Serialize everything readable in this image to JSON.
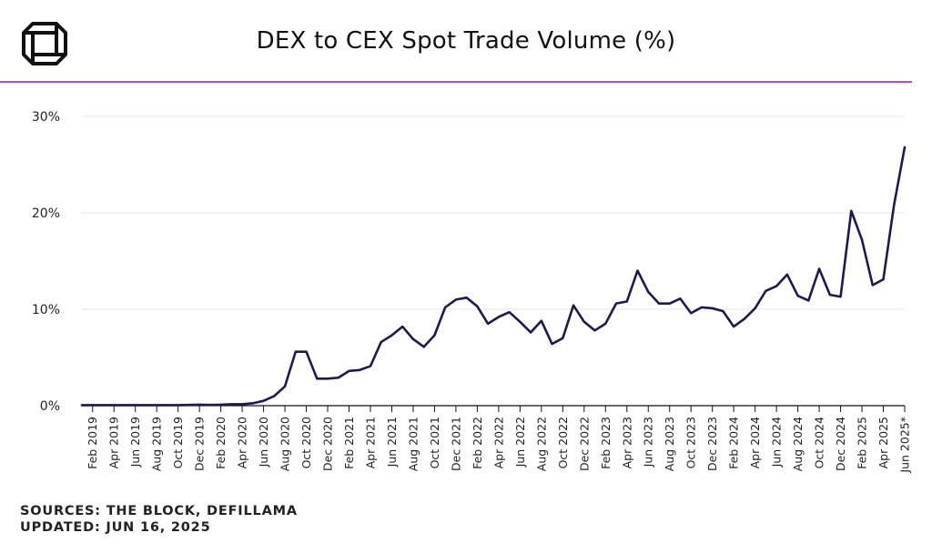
{
  "header": {
    "title": "DEX to CEX Spot Trade Volume (%)"
  },
  "footer": {
    "sources": "SOURCES: THE BLOCK, DEFILLAMA",
    "updated": "UPDATED: JUN 16, 2025"
  },
  "colors": {
    "line": "#1f1a4d",
    "accent_rule": "#b54ad8",
    "grid": "#e6e6e6",
    "axis": "#111111"
  },
  "chart_data": {
    "type": "line",
    "title": "DEX to CEX Spot Trade Volume (%)",
    "xlabel": "",
    "ylabel": "",
    "ylim": [
      0,
      30
    ],
    "yticks": [
      0,
      10,
      20,
      30
    ],
    "ytick_labels": [
      "0%",
      "10%",
      "20%",
      "30%"
    ],
    "grid": true,
    "legend": "none",
    "x_tick_labels": [
      "Feb 2019",
      "Apr 2019",
      "Jun 2019",
      "Aug 2019",
      "Oct 2019",
      "Dec 2019",
      "Feb 2020",
      "Apr 2020",
      "Jun 2020",
      "Aug 2020",
      "Oct 2020",
      "Dec 2020",
      "Feb 2021",
      "Apr 2021",
      "Jun 2021",
      "Aug 2021",
      "Oct 2021",
      "Dec 2021",
      "Feb 2022",
      "Apr 2022",
      "Jun 2022",
      "Aug 2022",
      "Oct 2022",
      "Dec 2022",
      "Feb 2023",
      "Apr 2023",
      "Jun 2023",
      "Aug 2023",
      "Oct 2023",
      "Dec 2023",
      "Feb 2024",
      "Apr 2024",
      "Jun 2024",
      "Aug 2024",
      "Oct 2024",
      "Dec 2024",
      "Feb 2025",
      "Apr 2025",
      "Jun 2025*"
    ],
    "x": [
      "Jan 2019",
      "Feb 2019",
      "Mar 2019",
      "Apr 2019",
      "May 2019",
      "Jun 2019",
      "Jul 2019",
      "Aug 2019",
      "Sep 2019",
      "Oct 2019",
      "Nov 2019",
      "Dec 2019",
      "Jan 2020",
      "Feb 2020",
      "Mar 2020",
      "Apr 2020",
      "May 2020",
      "Jun 2020",
      "Jul 2020",
      "Aug 2020",
      "Sep 2020",
      "Oct 2020",
      "Nov 2020",
      "Dec 2020",
      "Jan 2021",
      "Feb 2021",
      "Mar 2021",
      "Apr 2021",
      "May 2021",
      "Jun 2021",
      "Jul 2021",
      "Aug 2021",
      "Sep 2021",
      "Oct 2021",
      "Nov 2021",
      "Dec 2021",
      "Jan 2022",
      "Feb 2022",
      "Mar 2022",
      "Apr 2022",
      "May 2022",
      "Jun 2022",
      "Jul 2022",
      "Aug 2022",
      "Sep 2022",
      "Oct 2022",
      "Nov 2022",
      "Dec 2022",
      "Jan 2023",
      "Feb 2023",
      "Mar 2023",
      "Apr 2023",
      "May 2023",
      "Jun 2023",
      "Jul 2023",
      "Aug 2023",
      "Sep 2023",
      "Oct 2023",
      "Nov 2023",
      "Dec 2023",
      "Jan 2024",
      "Feb 2024",
      "Mar 2024",
      "Apr 2024",
      "May 2024",
      "Jun 2024",
      "Jul 2024",
      "Aug 2024",
      "Sep 2024",
      "Oct 2024",
      "Nov 2024",
      "Dec 2024",
      "Jan 2025",
      "Feb 2025",
      "Mar 2025",
      "Apr 2025",
      "May 2025",
      "Jun 2025*"
    ],
    "series": [
      {
        "values": [
          0.05,
          0.05,
          0.05,
          0.05,
          0.05,
          0.05,
          0.05,
          0.05,
          0.05,
          0.05,
          0.08,
          0.1,
          0.08,
          0.1,
          0.15,
          0.15,
          0.25,
          0.5,
          1.0,
          2.0,
          5.6,
          5.6,
          2.8,
          2.8,
          2.9,
          3.6,
          3.7,
          4.1,
          6.6,
          7.3,
          8.2,
          6.9,
          6.1,
          7.3,
          10.2,
          11.0,
          11.2,
          10.3,
          8.5,
          9.2,
          9.7,
          8.7,
          7.6,
          8.8,
          6.4,
          7.0,
          10.4,
          8.7,
          7.8,
          8.5,
          10.6,
          10.8,
          14.0,
          11.8,
          10.6,
          10.6,
          11.1,
          9.6,
          10.2,
          10.1,
          9.8,
          8.2,
          9.0,
          10.1,
          11.9,
          12.4,
          13.6,
          11.4,
          10.9,
          14.2,
          11.5,
          11.3,
          20.2,
          17.2,
          12.5,
          13.1,
          20.8,
          26.8
        ]
      }
    ]
  }
}
